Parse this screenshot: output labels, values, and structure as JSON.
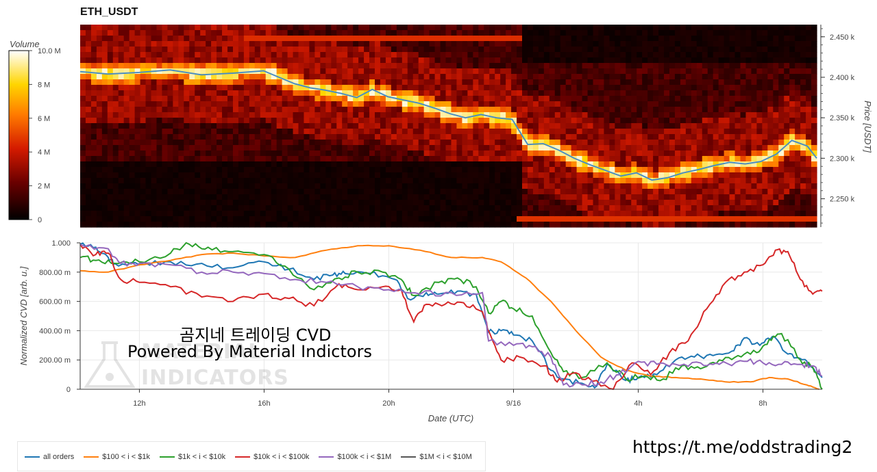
{
  "title": "ETH_USDT",
  "overlay": {
    "line1": "곰지네 트레이딩 CVD",
    "line2": "Powered By Material Indictors",
    "url": "https://t.me/oddstrading2",
    "watermark": "INDICATORS"
  },
  "colors": {
    "all_orders": "#1f77b4",
    "s100_1k": "#ff7f0e",
    "s1k_10k": "#2ca02c",
    "s10k_100k": "#d62728",
    "s100k_1m": "#9467bd",
    "s1m_10m": "#555555"
  },
  "chart_data": [
    {
      "type": "heatmap",
      "title": "ETH_USDT",
      "colorbar": {
        "label": "Volume",
        "range": [
          0,
          10000000
        ],
        "ticks": [
          "0",
          "2 M",
          "4 M",
          "6 M",
          "8 M",
          "10.0 M"
        ]
      },
      "ylabel": "Price [USDT]",
      "ylim": [
        2215,
        2465
      ],
      "yticks": [
        "2.250 k",
        "2.300 k",
        "2.350 k",
        "2.400 k",
        "2.450 k"
      ],
      "ytick_values": [
        2250,
        2300,
        2350,
        2400,
        2450
      ],
      "x_range_hours": [
        9.6,
        33.3
      ],
      "price_series": {
        "name": "price",
        "x": [
          9.6,
          10.5,
          11.5,
          12.5,
          13.5,
          14.5,
          15.5,
          16.0,
          16.5,
          17.0,
          17.5,
          18.0,
          18.5,
          19.0,
          19.5,
          20.0,
          20.5,
          21.0,
          21.5,
          22.0,
          22.5,
          23.0,
          23.5,
          24.0,
          24.5,
          25.0,
          25.5,
          26.0,
          26.5,
          27.0,
          27.5,
          28.0,
          28.5,
          29.0,
          29.5,
          30.0,
          30.5,
          31.0,
          31.5,
          32.0,
          32.5,
          33.0,
          33.3
        ],
        "y": [
          2407,
          2404,
          2406,
          2409,
          2403,
          2405,
          2408,
          2400,
          2392,
          2387,
          2384,
          2380,
          2375,
          2385,
          2376,
          2372,
          2368,
          2362,
          2355,
          2350,
          2354,
          2350,
          2348,
          2317,
          2318,
          2310,
          2300,
          2292,
          2285,
          2278,
          2282,
          2273,
          2276,
          2282,
          2286,
          2291,
          2295,
          2293,
          2296,
          2305,
          2322,
          2315,
          2300
        ]
      }
    },
    {
      "type": "line",
      "xlabel": "Date (UTC)",
      "ylabel": "Normalized CVD [arb. u.]",
      "ylim": [
        0,
        1.0
      ],
      "yticks": [
        "0",
        "200.00 m",
        "400.00 m",
        "600.00 m",
        "800.00 m",
        "1.000"
      ],
      "ytick_values": [
        0,
        0.2,
        0.4,
        0.6,
        0.8,
        1.0
      ],
      "xticks": [
        "12h",
        "16h",
        "20h",
        "9/16",
        "4h",
        "8h"
      ],
      "xtick_values": [
        12,
        16,
        20,
        24,
        28,
        32
      ],
      "xlim": [
        10.1,
        33.9
      ],
      "series": [
        {
          "name": "all orders",
          "x": [
            10.1,
            10.6,
            11.0,
            11.2,
            12.0,
            13.0,
            14.0,
            15.0,
            16.0,
            16.8,
            17.6,
            18.2,
            18.6,
            19.4,
            20.2,
            20.6,
            21.2,
            21.6,
            22.2,
            22.8,
            23.2,
            23.6,
            24.0,
            24.6,
            25.2,
            25.6,
            26.2,
            26.6,
            27.0,
            27.6,
            28.0,
            28.6,
            29.2,
            29.8,
            30.4,
            31.0,
            31.4,
            31.9,
            32.3,
            32.8,
            33.2,
            33.5,
            33.9
          ],
          "y": [
            0.99,
            0.97,
            0.9,
            0.86,
            0.85,
            0.87,
            0.86,
            0.83,
            0.87,
            0.82,
            0.75,
            0.78,
            0.79,
            0.79,
            0.75,
            0.62,
            0.66,
            0.65,
            0.67,
            0.65,
            0.39,
            0.4,
            0.37,
            0.33,
            0.13,
            0.07,
            0.04,
            0.01,
            0.17,
            0.06,
            0.08,
            0.1,
            0.2,
            0.22,
            0.23,
            0.26,
            0.35,
            0.3,
            0.36,
            0.24,
            0.21,
            0.16,
            0.08
          ]
        },
        {
          "name": "$100 < i < $1k",
          "x": [
            10.1,
            11.0,
            12.0,
            13.0,
            14.0,
            15.0,
            16.0,
            17.0,
            18.0,
            19.0,
            20.0,
            21.0,
            22.0,
            23.0,
            23.6,
            24.4,
            25.2,
            26.0,
            26.8,
            27.6,
            28.4,
            29.2,
            30.0,
            30.8,
            31.6,
            32.2,
            32.8,
            33.4,
            33.8
          ],
          "y": [
            0.81,
            0.8,
            0.85,
            0.88,
            0.92,
            0.93,
            0.91,
            0.9,
            0.95,
            0.98,
            0.98,
            0.95,
            0.9,
            0.9,
            0.87,
            0.76,
            0.6,
            0.4,
            0.22,
            0.13,
            0.09,
            0.08,
            0.07,
            0.05,
            0.05,
            0.08,
            0.07,
            0.03,
            0.0
          ]
        },
        {
          "name": "$1k < i < $10k",
          "x": [
            10.1,
            10.6,
            11.2,
            12.0,
            13.0,
            13.6,
            14.2,
            15.0,
            16.0,
            16.8,
            17.6,
            18.4,
            19.0,
            19.8,
            20.4,
            20.8,
            21.6,
            22.2,
            22.8,
            23.2,
            23.6,
            24.0,
            24.6,
            25.2,
            25.6,
            26.2,
            27.0,
            27.6,
            28.2,
            28.8,
            29.4,
            30.0,
            30.6,
            31.2,
            31.8,
            32.2,
            32.6,
            33.2,
            33.6,
            33.9
          ],
          "y": [
            0.9,
            0.88,
            0.86,
            0.87,
            0.93,
            0.99,
            0.97,
            0.94,
            0.92,
            0.82,
            0.68,
            0.76,
            0.8,
            0.8,
            0.75,
            0.64,
            0.73,
            0.76,
            0.7,
            0.52,
            0.6,
            0.55,
            0.5,
            0.25,
            0.12,
            0.08,
            0.18,
            0.07,
            0.09,
            0.07,
            0.16,
            0.14,
            0.2,
            0.23,
            0.25,
            0.34,
            0.38,
            0.2,
            0.15,
            0.0
          ]
        },
        {
          "name": "$10k < i < $100k",
          "x": [
            10.1,
            10.6,
            11.0,
            11.4,
            12.0,
            13.0,
            14.0,
            15.0,
            16.0,
            16.8,
            17.6,
            18.4,
            19.0,
            19.8,
            20.4,
            20.8,
            21.2,
            21.8,
            22.4,
            23.0,
            23.2,
            23.6,
            24.2,
            25.0,
            25.4,
            25.8,
            26.4,
            27.2,
            27.8,
            28.4,
            29.0,
            29.6,
            30.2,
            30.8,
            31.4,
            32.0,
            32.4,
            32.8,
            33.2,
            33.6,
            33.9
          ],
          "y": [
            0.99,
            0.92,
            0.93,
            0.75,
            0.73,
            0.7,
            0.63,
            0.6,
            0.65,
            0.62,
            0.57,
            0.72,
            0.68,
            0.7,
            0.68,
            0.46,
            0.58,
            0.58,
            0.59,
            0.53,
            0.4,
            0.2,
            0.22,
            0.16,
            0.05,
            0.1,
            0.08,
            0.0,
            0.18,
            0.1,
            0.25,
            0.33,
            0.55,
            0.73,
            0.8,
            0.85,
            0.95,
            0.94,
            0.75,
            0.65,
            0.67
          ]
        },
        {
          "name": "$100k < i < $1M",
          "x": [
            10.1,
            11.0,
            11.4,
            12.0,
            13.0,
            14.0,
            15.0,
            16.0,
            17.0,
            18.0,
            19.0,
            20.0,
            21.0,
            22.0,
            23.0,
            23.2,
            24.0,
            24.6,
            25.2,
            25.6,
            26.2,
            26.8,
            27.4,
            28.0,
            28.6,
            29.2,
            30.0,
            30.6,
            31.4,
            32.0,
            32.6,
            33.2,
            33.6,
            33.9
          ],
          "y": [
            0.99,
            0.96,
            0.86,
            0.86,
            0.85,
            0.8,
            0.8,
            0.79,
            0.75,
            0.73,
            0.7,
            0.68,
            0.65,
            0.66,
            0.66,
            0.33,
            0.3,
            0.29,
            0.22,
            0.03,
            0.03,
            0.05,
            0.1,
            0.19,
            0.17,
            0.17,
            0.18,
            0.17,
            0.19,
            0.18,
            0.17,
            0.17,
            0.16,
            0.09
          ]
        },
        {
          "name": "$1M < i < $10M",
          "x": [],
          "y": []
        }
      ]
    }
  ]
}
